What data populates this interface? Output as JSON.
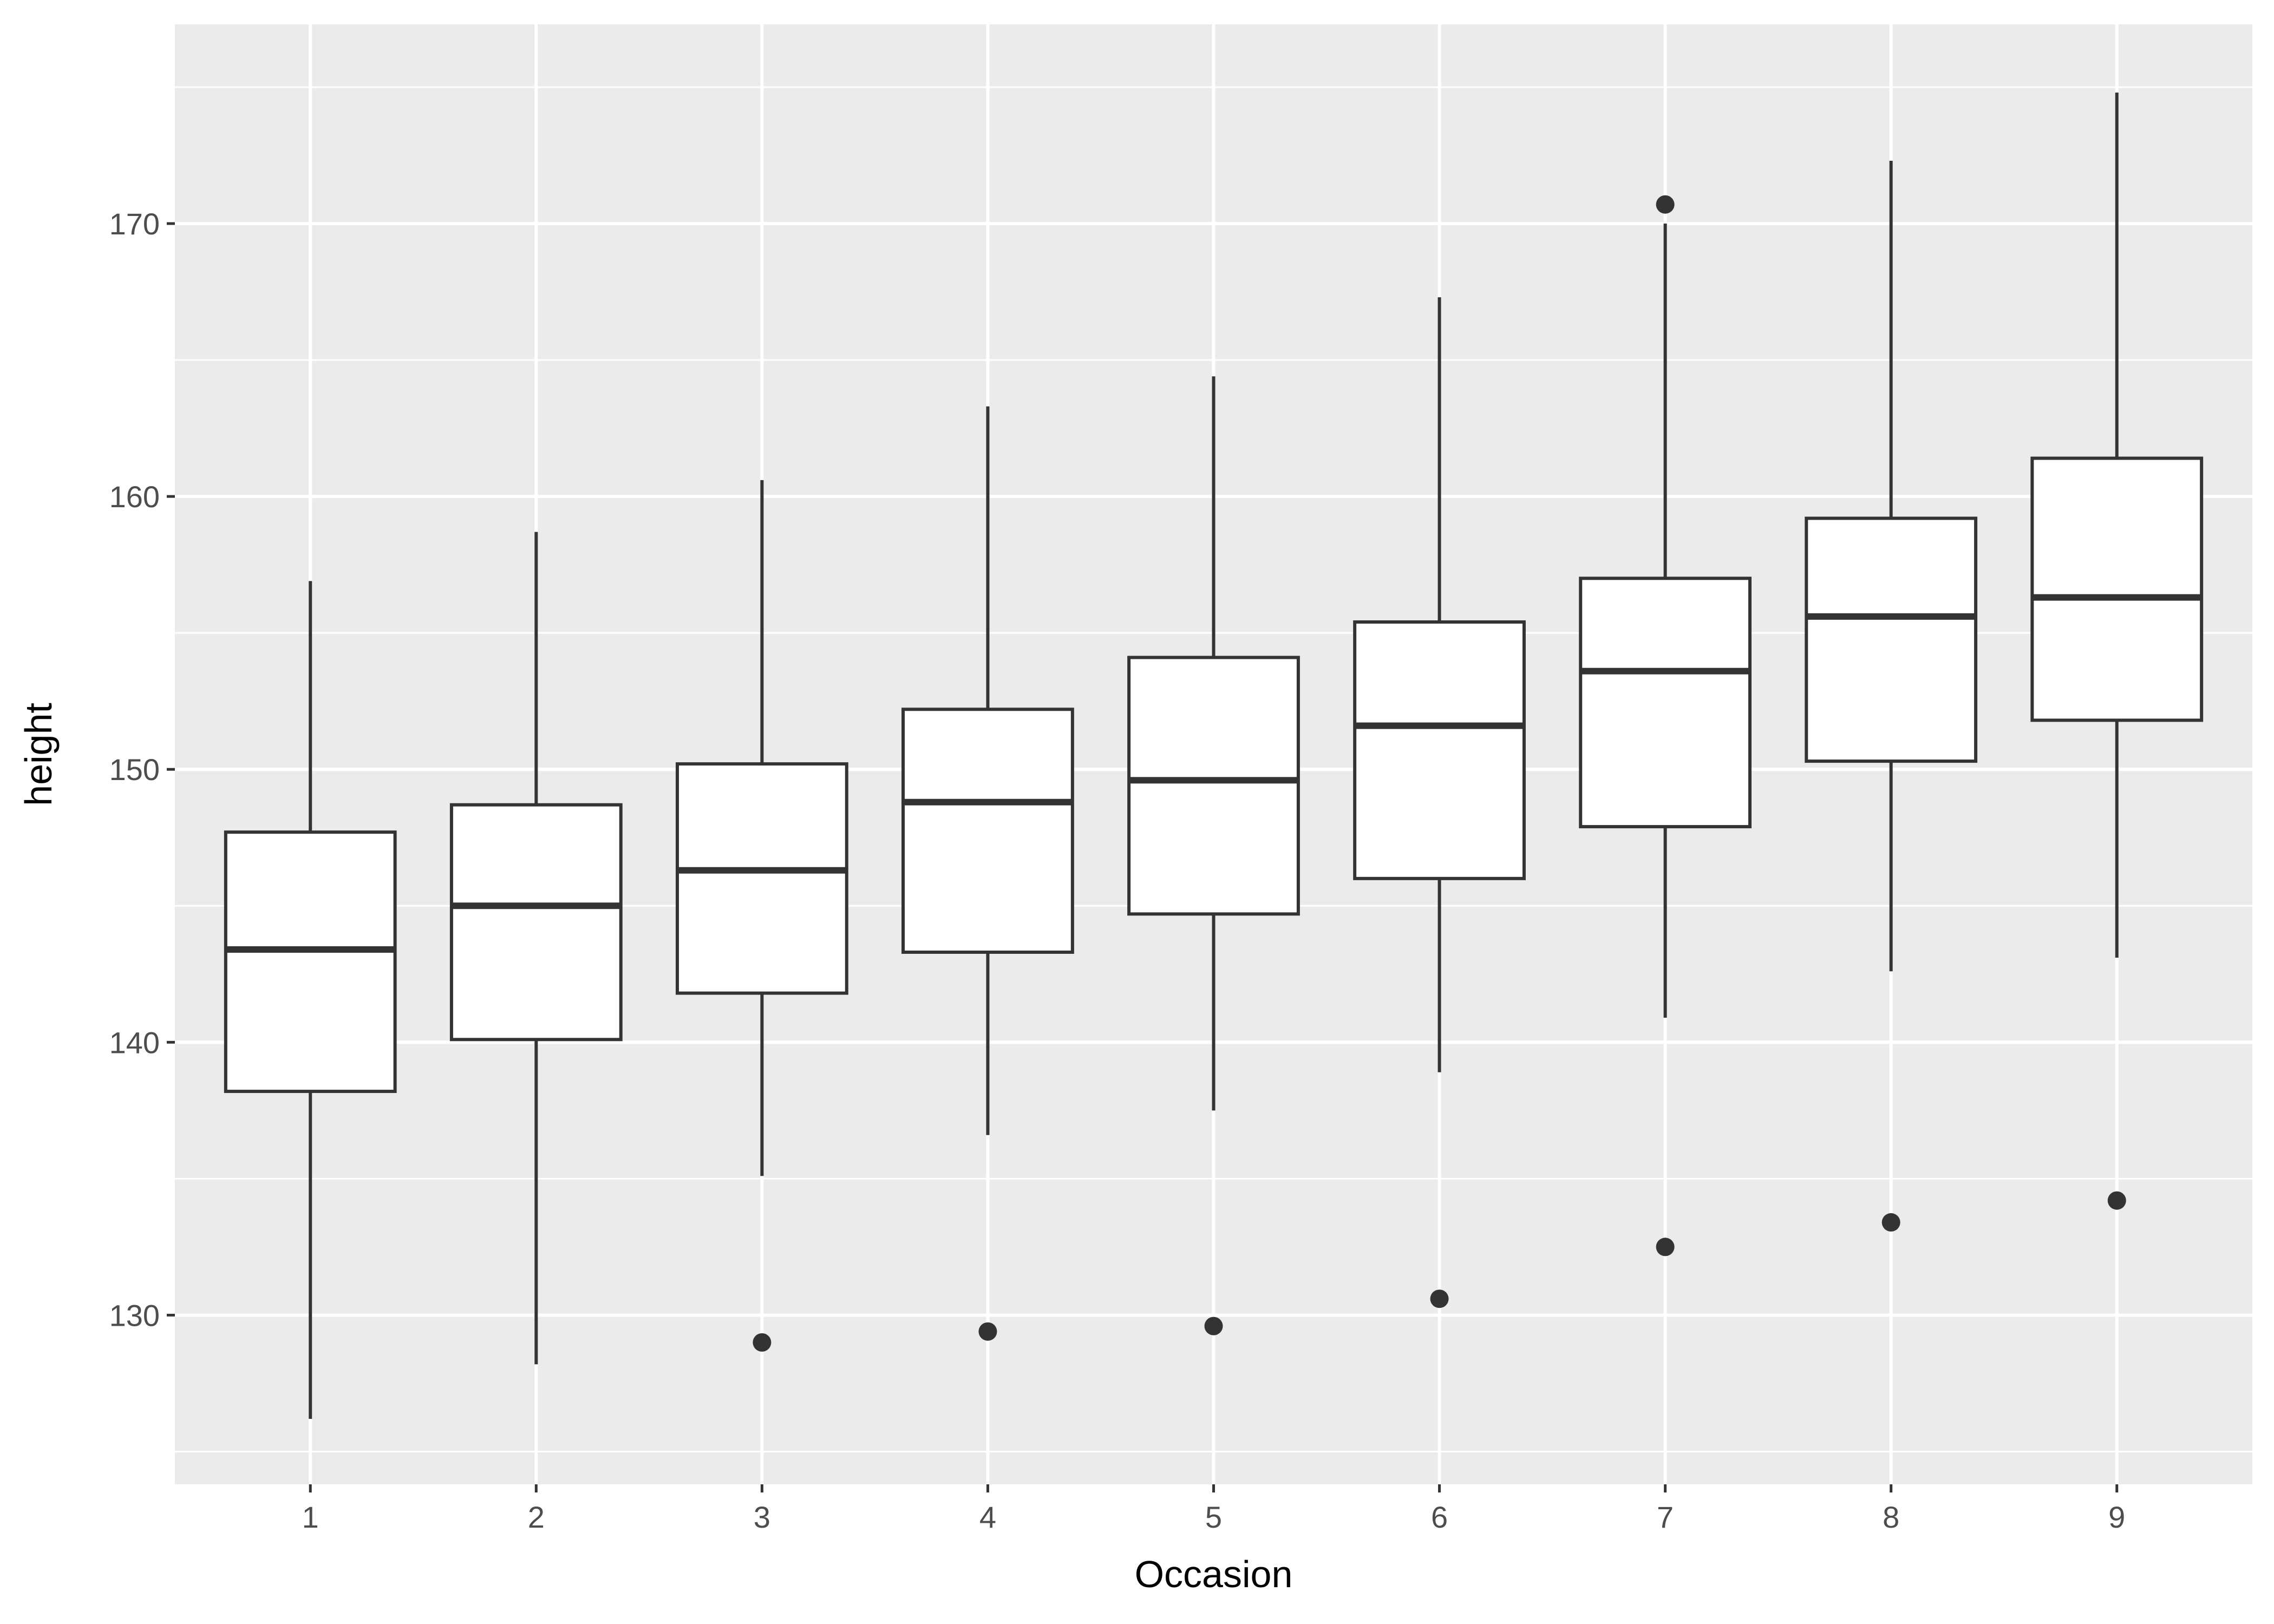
{
  "chart_data": {
    "type": "boxplot",
    "title": "",
    "xlabel": "Occasion",
    "ylabel": "height",
    "categories": [
      "1",
      "2",
      "3",
      "4",
      "5",
      "6",
      "7",
      "8",
      "9"
    ],
    "ylim": [
      123.8,
      177.3
    ],
    "yticks": [
      130,
      140,
      150,
      160,
      170
    ],
    "grid": true,
    "legend": "none",
    "colors": {
      "panel_background": "#ebebeb",
      "grid": "#ffffff",
      "box_fill": "#ffffff",
      "box_line": "#333333",
      "tick_label": "#4d4d4d",
      "axis_title": "#000000"
    },
    "boxes": [
      {
        "category": "1",
        "whisker_low": 126.2,
        "q1": 138.2,
        "median": 143.4,
        "q3": 147.7,
        "whisker_high": 156.9,
        "outliers": []
      },
      {
        "category": "2",
        "whisker_low": 128.2,
        "q1": 140.1,
        "median": 145.0,
        "q3": 148.7,
        "whisker_high": 158.7,
        "outliers": []
      },
      {
        "category": "3",
        "whisker_low": 135.1,
        "q1": 141.8,
        "median": 146.3,
        "q3": 150.2,
        "whisker_high": 160.6,
        "outliers": [
          129.0
        ]
      },
      {
        "category": "4",
        "whisker_low": 136.6,
        "q1": 143.3,
        "median": 148.8,
        "q3": 152.2,
        "whisker_high": 163.3,
        "outliers": [
          129.4
        ]
      },
      {
        "category": "5",
        "whisker_low": 137.5,
        "q1": 144.7,
        "median": 149.6,
        "q3": 154.1,
        "whisker_high": 164.4,
        "outliers": [
          129.6
        ]
      },
      {
        "category": "6",
        "whisker_low": 138.9,
        "q1": 146.0,
        "median": 151.6,
        "q3": 155.4,
        "whisker_high": 167.3,
        "outliers": [
          130.6
        ]
      },
      {
        "category": "7",
        "whisker_low": 140.9,
        "q1": 147.9,
        "median": 153.6,
        "q3": 157.0,
        "whisker_high": 170.0,
        "outliers": [
          132.5,
          170.7
        ]
      },
      {
        "category": "8",
        "whisker_low": 142.6,
        "q1": 150.3,
        "median": 155.6,
        "q3": 159.2,
        "whisker_high": 172.3,
        "outliers": [
          133.4
        ]
      },
      {
        "category": "9",
        "whisker_low": 143.1,
        "q1": 151.8,
        "median": 156.3,
        "q3": 161.4,
        "whisker_high": 174.8,
        "outliers": [
          134.2
        ]
      }
    ]
  }
}
